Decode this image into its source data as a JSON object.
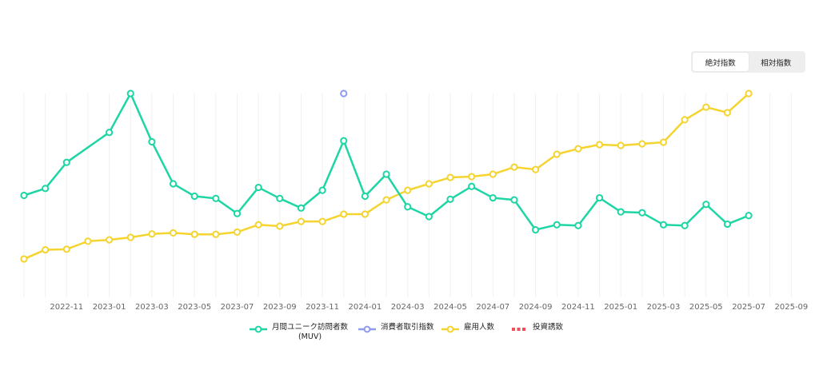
{
  "toggle": {
    "options": [
      "絶対指数",
      "相対指数"
    ],
    "selected": 0
  },
  "colors": {
    "muv": "#1dd6a4",
    "consumer": "#8e9bf0",
    "employment": "#f5d430",
    "investment": "#ef4e5a"
  },
  "chart_data": {
    "type": "line",
    "x_ticks": [
      "2022-11",
      "2023-01",
      "2023-03",
      "2023-05",
      "2023-07",
      "2023-09",
      "2023-11",
      "2024-01",
      "2024-03",
      "2024-05",
      "2024-07",
      "2024-09",
      "2024-11",
      "2025-01",
      "2025-03",
      "2025-05",
      "2025-07",
      "2025-09"
    ],
    "grid": "vertical",
    "ylim": [
      0,
      100
    ],
    "legend_position": "bottom",
    "series": [
      {
        "name": "月間ユニーク訪問者数",
        "name_sub": "(MUV)",
        "color_key": "muv",
        "points": [
          [
            "2022-09",
            50.0
          ],
          [
            "2022-10",
            53.4
          ],
          [
            "2022-11",
            66.2
          ],
          [
            "2023-01",
            80.9
          ],
          [
            "2023-02",
            100.0
          ],
          [
            "2023-03",
            76.3
          ],
          [
            "2023-04",
            55.7
          ],
          [
            "2023-05",
            49.6
          ],
          [
            "2023-06",
            48.5
          ],
          [
            "2023-07",
            41.1
          ],
          [
            "2023-08",
            53.9
          ],
          [
            "2023-09",
            48.5
          ],
          [
            "2023-10",
            43.8
          ],
          [
            "2023-11",
            52.5
          ],
          [
            "2023-12",
            76.8
          ],
          [
            "2024-01",
            49.6
          ],
          [
            "2024-02",
            60.4
          ],
          [
            "2024-03",
            44.4
          ],
          [
            "2024-04",
            39.6
          ],
          [
            "2024-05",
            48.1
          ],
          [
            "2024-06",
            54.4
          ],
          [
            "2024-07",
            48.8
          ],
          [
            "2024-08",
            47.8
          ],
          [
            "2024-09",
            33.1
          ],
          [
            "2024-10",
            35.6
          ],
          [
            "2024-11",
            35.2
          ],
          [
            "2024-12",
            48.8
          ],
          [
            "2025-01",
            41.9
          ],
          [
            "2025-02",
            41.5
          ],
          [
            "2025-03",
            35.6
          ],
          [
            "2025-04",
            35.2
          ],
          [
            "2025-05",
            45.6
          ],
          [
            "2025-06",
            35.9
          ],
          [
            "2025-07",
            40.1
          ]
        ]
      },
      {
        "name": "消費者取引指数",
        "color_key": "consumer",
        "points": [
          [
            "2023-12",
            100.0
          ]
        ]
      },
      {
        "name": "雇用人数",
        "color_key": "employment",
        "points": [
          [
            "2022-09",
            18.8
          ],
          [
            "2022-10",
            23.3
          ],
          [
            "2022-11",
            23.6
          ],
          [
            "2022-12",
            27.5
          ],
          [
            "2023-01",
            28.2
          ],
          [
            "2023-02",
            29.4
          ],
          [
            "2023-03",
            31.1
          ],
          [
            "2023-04",
            31.6
          ],
          [
            "2023-05",
            30.9
          ],
          [
            "2023-06",
            30.9
          ],
          [
            "2023-07",
            32.0
          ],
          [
            "2023-08",
            35.6
          ],
          [
            "2023-09",
            34.9
          ],
          [
            "2023-10",
            37.2
          ],
          [
            "2023-11",
            37.2
          ],
          [
            "2023-12",
            40.8
          ],
          [
            "2024-01",
            40.8
          ],
          [
            "2024-02",
            47.8
          ],
          [
            "2024-03",
            52.5
          ],
          [
            "2024-04",
            55.7
          ],
          [
            "2024-05",
            58.8
          ],
          [
            "2024-06",
            59.2
          ],
          [
            "2024-07",
            60.4
          ],
          [
            "2024-08",
            63.9
          ],
          [
            "2024-09",
            62.7
          ],
          [
            "2024-10",
            70.2
          ],
          [
            "2024-11",
            72.9
          ],
          [
            "2024-12",
            74.9
          ],
          [
            "2025-01",
            74.5
          ],
          [
            "2025-02",
            75.3
          ],
          [
            "2025-03",
            76.1
          ],
          [
            "2025-04",
            87.1
          ],
          [
            "2025-05",
            93.3
          ],
          [
            "2025-06",
            90.6
          ],
          [
            "2025-07",
            100.0
          ]
        ]
      },
      {
        "name": "投資誘致",
        "color_key": "investment",
        "points": []
      }
    ]
  }
}
